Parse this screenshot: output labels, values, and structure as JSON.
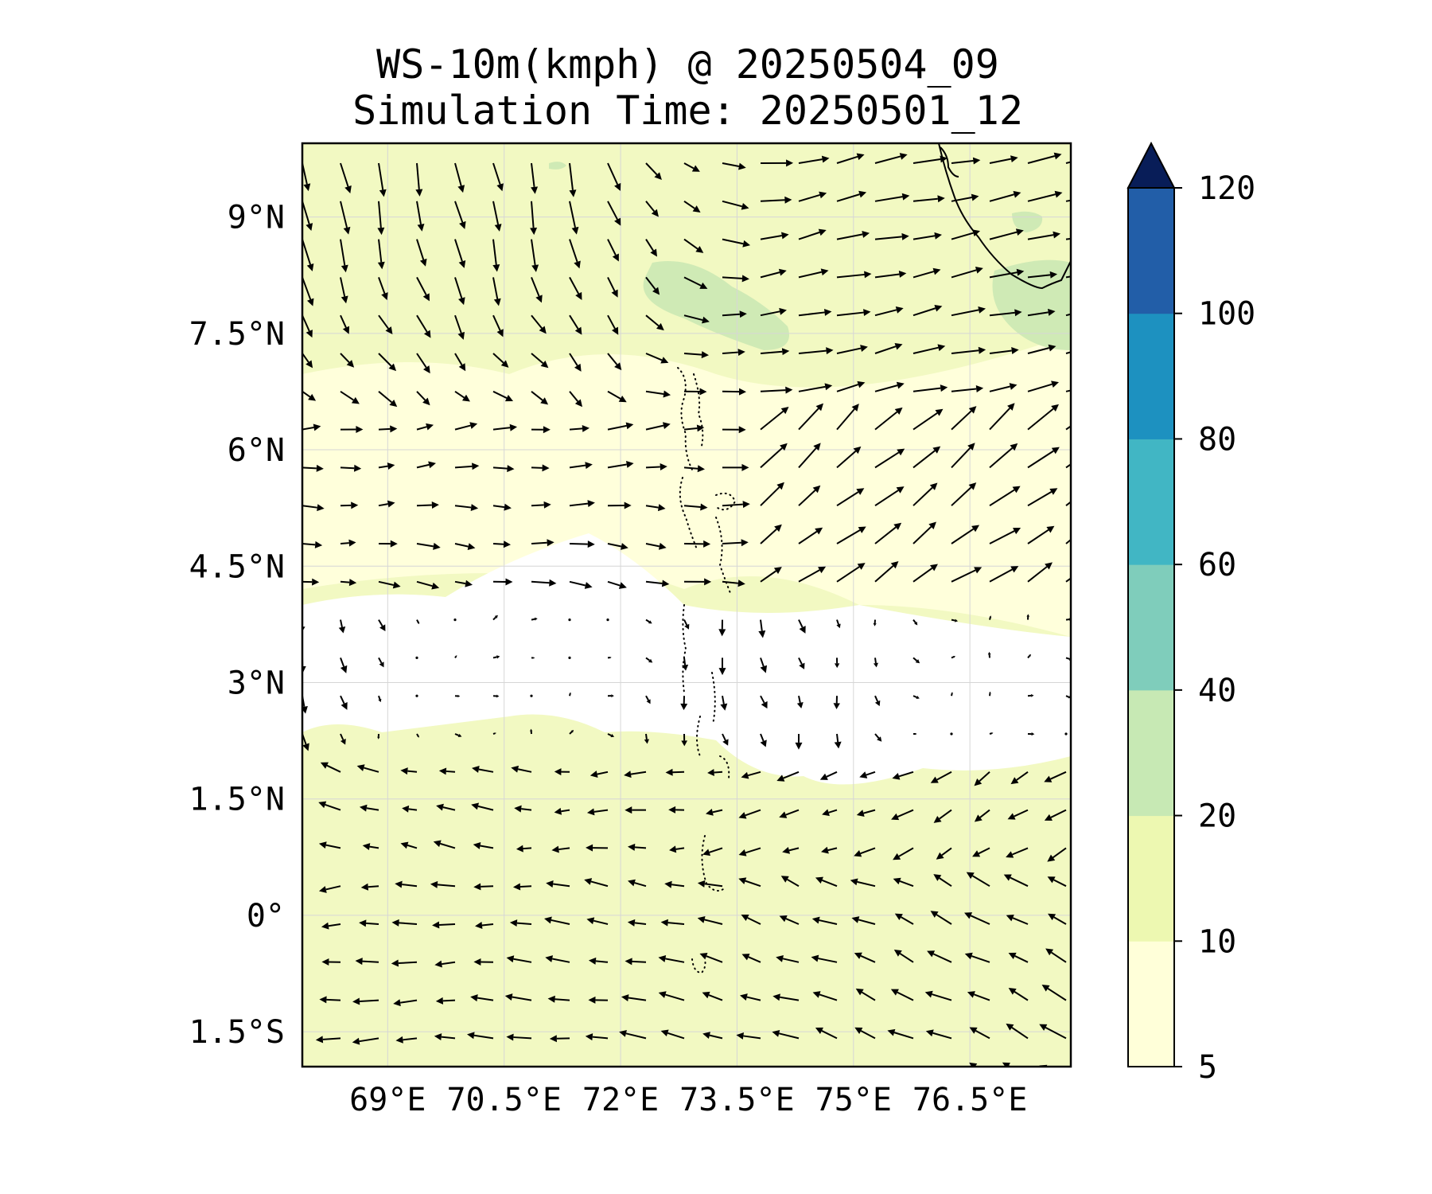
{
  "figure": {
    "title_line1": "WS-10m(kmph) @ 20250504_09",
    "title_line2": "Simulation Time: 20250501_12"
  },
  "map": {
    "lon_range": [
      67.9,
      77.8
    ],
    "lat_range": [
      -1.95,
      9.95
    ],
    "gridlines": true,
    "lon_ticks": [
      {
        "value": 69,
        "label": "69°E"
      },
      {
        "value": 70.5,
        "label": "70.5°E"
      },
      {
        "value": 72,
        "label": "72°E"
      },
      {
        "value": 73.5,
        "label": "73.5°E"
      },
      {
        "value": 75,
        "label": "75°E"
      },
      {
        "value": 76.5,
        "label": "76.5°E"
      }
    ],
    "lat_ticks": [
      {
        "value": 9,
        "label": "9°N"
      },
      {
        "value": 7.5,
        "label": "7.5°N"
      },
      {
        "value": 6,
        "label": "6°N"
      },
      {
        "value": 4.5,
        "label": "4.5°N"
      },
      {
        "value": 3,
        "label": "3°N"
      },
      {
        "value": 1.5,
        "label": "1.5°N"
      },
      {
        "value": 0,
        "label": "0°"
      },
      {
        "value": -1.5,
        "label": "1.5°S"
      }
    ],
    "vector_field": "wind-10m"
  },
  "colorbar": {
    "levels": [
      5,
      10,
      20,
      40,
      60,
      80,
      100,
      120
    ],
    "colors": [
      "#ffffd9",
      "#edf8b1",
      "#c7e9b4",
      "#7fcdbb",
      "#41b6c4",
      "#1d91c0",
      "#225ea8",
      "#0c2c84"
    ],
    "extend_color": "#081d58",
    "extend": "max",
    "tick_labels": [
      "5",
      "10",
      "20",
      "40",
      "60",
      "80",
      "100",
      "120"
    ]
  },
  "colors": {
    "calm": "#ffffff",
    "light": "#ffffd9",
    "moderate": "#f0f9b8",
    "fresh": "#cfeab5",
    "arrow": "#000000"
  }
}
